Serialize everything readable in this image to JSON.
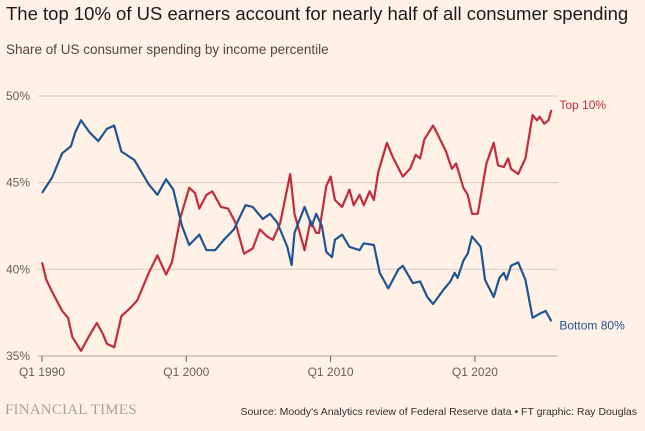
{
  "title": "The top 10% of US earners account for nearly half of all consumer spending",
  "subtitle": "Share of US consumer spending by income percentile",
  "footer": {
    "brand": "FINANCIAL TIMES",
    "source": "Source: Moody's Analytics review of Federal Reserve data • FT graphic: Ray Douglas"
  },
  "chart_data": {
    "type": "line",
    "title": "The top 10% of US earners account for nearly half of all consumer spending",
    "subtitle": "Share of US consumer spending by income percentile",
    "xlabel": "",
    "ylabel": "",
    "xlim": [
      1990,
      2025.3
    ],
    "ylim": [
      35,
      50
    ],
    "grid": "horizontal",
    "legend": "direct labels at line ends (right)",
    "x_ticks": [
      {
        "value": 1990,
        "label": "Q1 1990"
      },
      {
        "value": 2000,
        "label": "Q1 2000"
      },
      {
        "value": 2010,
        "label": "Q1 2010"
      },
      {
        "value": 2020,
        "label": "Q1 2020"
      }
    ],
    "y_ticks": [
      {
        "value": 35,
        "label": "35%"
      },
      {
        "value": 40,
        "label": "40%"
      },
      {
        "value": 45,
        "label": "45%"
      },
      {
        "value": 50,
        "label": "50%"
      }
    ],
    "series": [
      {
        "name": "Top 10%",
        "color": "#c22c3c",
        "points": [
          [
            1990.0,
            40.4
          ],
          [
            1990.3,
            39.4
          ],
          [
            1990.7,
            38.7
          ],
          [
            1991.4,
            37.6
          ],
          [
            1991.8,
            37.2
          ],
          [
            1992.1,
            36.1
          ],
          [
            1992.7,
            35.3
          ],
          [
            1993.3,
            36.2
          ],
          [
            1993.8,
            36.9
          ],
          [
            1994.2,
            36.3
          ],
          [
            1994.5,
            35.7
          ],
          [
            1995.0,
            35.5
          ],
          [
            1995.5,
            37.3
          ],
          [
            1996.1,
            37.75
          ],
          [
            1996.6,
            38.2
          ],
          [
            1997.4,
            39.8
          ],
          [
            1998.0,
            40.8
          ],
          [
            1998.6,
            39.7
          ],
          [
            1999.0,
            40.4
          ],
          [
            1999.6,
            43.0
          ],
          [
            2000.2,
            44.7
          ],
          [
            2000.6,
            44.4
          ],
          [
            2000.9,
            43.5
          ],
          [
            2001.4,
            44.3
          ],
          [
            2001.8,
            44.5
          ],
          [
            2002.4,
            43.6
          ],
          [
            2002.9,
            43.5
          ],
          [
            2003.4,
            42.7
          ],
          [
            2004.0,
            40.9
          ],
          [
            2004.6,
            41.2
          ],
          [
            2005.1,
            42.3
          ],
          [
            2005.6,
            41.9
          ],
          [
            2006.0,
            41.7
          ],
          [
            2006.5,
            42.65
          ],
          [
            2007.2,
            45.5
          ],
          [
            2007.5,
            43.2
          ],
          [
            2008.2,
            41.1
          ],
          [
            2008.6,
            42.8
          ],
          [
            2009.0,
            42.1
          ],
          [
            2009.2,
            42.1
          ],
          [
            2009.4,
            43.2
          ],
          [
            2009.7,
            44.8
          ],
          [
            2010.0,
            45.35
          ],
          [
            2010.3,
            44.0
          ],
          [
            2010.8,
            43.6
          ],
          [
            2011.3,
            44.6
          ],
          [
            2011.6,
            43.7
          ],
          [
            2012.0,
            44.3
          ],
          [
            2012.3,
            43.7
          ],
          [
            2012.7,
            44.5
          ],
          [
            2013.0,
            44.0
          ],
          [
            2013.3,
            45.6
          ],
          [
            2013.9,
            47.3
          ],
          [
            2014.3,
            46.5
          ],
          [
            2015.0,
            45.35
          ],
          [
            2015.5,
            45.8
          ],
          [
            2015.9,
            46.6
          ],
          [
            2016.2,
            46.4
          ],
          [
            2016.5,
            47.5
          ],
          [
            2017.1,
            48.3
          ],
          [
            2017.5,
            47.65
          ],
          [
            2018.0,
            46.8
          ],
          [
            2018.4,
            45.8
          ],
          [
            2018.7,
            46.1
          ],
          [
            2019.2,
            44.7
          ],
          [
            2019.5,
            44.3
          ],
          [
            2019.8,
            43.2
          ],
          [
            2020.2,
            43.2
          ],
          [
            2020.8,
            46.1
          ],
          [
            2021.3,
            47.3
          ],
          [
            2021.6,
            46.0
          ],
          [
            2022.0,
            45.9
          ],
          [
            2022.3,
            46.4
          ],
          [
            2022.5,
            45.8
          ],
          [
            2023.0,
            45.5
          ],
          [
            2023.5,
            46.4
          ],
          [
            2024.0,
            48.9
          ],
          [
            2024.3,
            48.6
          ],
          [
            2024.5,
            48.8
          ],
          [
            2024.8,
            48.4
          ],
          [
            2025.1,
            48.6
          ],
          [
            2025.3,
            49.2
          ]
        ]
      },
      {
        "name": "Bottom 80%",
        "color": "#1f5596",
        "points": [
          [
            1990.0,
            44.4
          ],
          [
            1990.7,
            45.3
          ],
          [
            1991.4,
            46.7
          ],
          [
            1992.0,
            47.1
          ],
          [
            1992.3,
            47.9
          ],
          [
            1992.7,
            48.6
          ],
          [
            1993.3,
            47.9
          ],
          [
            1993.9,
            47.4
          ],
          [
            1994.5,
            48.1
          ],
          [
            1995.0,
            48.3
          ],
          [
            1995.5,
            46.8
          ],
          [
            1996.4,
            46.3
          ],
          [
            1997.4,
            44.9
          ],
          [
            1998.0,
            44.3
          ],
          [
            1998.6,
            45.2
          ],
          [
            1999.1,
            44.6
          ],
          [
            1999.7,
            42.5
          ],
          [
            2000.2,
            41.4
          ],
          [
            2000.9,
            42.0
          ],
          [
            2001.4,
            41.1
          ],
          [
            2002.0,
            41.1
          ],
          [
            2002.6,
            41.7
          ],
          [
            2003.3,
            42.3
          ],
          [
            2004.1,
            43.7
          ],
          [
            2004.6,
            43.6
          ],
          [
            2005.3,
            42.9
          ],
          [
            2005.8,
            43.2
          ],
          [
            2006.3,
            42.7
          ],
          [
            2007.0,
            41.3
          ],
          [
            2007.3,
            40.25
          ],
          [
            2007.5,
            42.1
          ],
          [
            2008.2,
            43.6
          ],
          [
            2008.7,
            42.5
          ],
          [
            2009.0,
            43.2
          ],
          [
            2009.4,
            42.5
          ],
          [
            2009.7,
            41.0
          ],
          [
            2010.1,
            40.7
          ],
          [
            2010.3,
            41.7
          ],
          [
            2010.8,
            42.0
          ],
          [
            2011.3,
            41.3
          ],
          [
            2012.0,
            41.1
          ],
          [
            2012.3,
            41.5
          ],
          [
            2013.0,
            41.4
          ],
          [
            2013.4,
            39.8
          ],
          [
            2014.0,
            38.9
          ],
          [
            2014.7,
            40.0
          ],
          [
            2015.0,
            40.2
          ],
          [
            2015.7,
            39.2
          ],
          [
            2016.2,
            39.3
          ],
          [
            2016.7,
            38.4
          ],
          [
            2017.1,
            38.0
          ],
          [
            2017.8,
            38.8
          ],
          [
            2018.3,
            39.3
          ],
          [
            2018.6,
            39.8
          ],
          [
            2018.8,
            39.5
          ],
          [
            2019.2,
            40.5
          ],
          [
            2019.5,
            40.9
          ],
          [
            2019.8,
            41.9
          ],
          [
            2020.4,
            41.3
          ],
          [
            2020.7,
            39.4
          ],
          [
            2021.3,
            38.4
          ],
          [
            2021.7,
            39.5
          ],
          [
            2022.0,
            39.8
          ],
          [
            2022.2,
            39.4
          ],
          [
            2022.5,
            40.2
          ],
          [
            2023.0,
            40.4
          ],
          [
            2023.5,
            39.4
          ],
          [
            2024.0,
            37.2
          ],
          [
            2024.4,
            37.4
          ],
          [
            2024.9,
            37.6
          ],
          [
            2025.3,
            37.0
          ]
        ]
      }
    ]
  }
}
